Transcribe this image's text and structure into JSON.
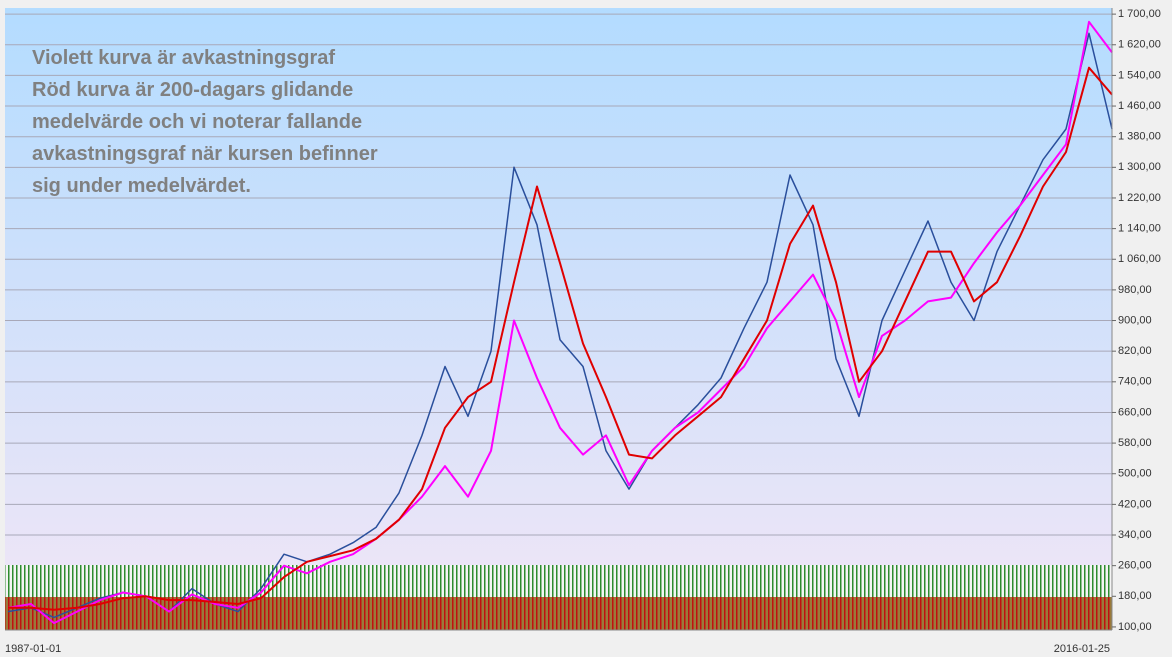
{
  "chart_data": {
    "type": "line",
    "annotations": [
      "Violett kurva är avkastningsgraf",
      "Röd kurva är 200-dagars glidande",
      "medelvärde och vi noterar fallande",
      "avkastningsgraf när kursen befinner",
      "sig under medelvärdet."
    ],
    "categories": [
      "1987-01-01",
      null,
      null,
      null,
      null,
      null,
      null,
      null,
      null,
      null,
      null,
      null,
      null,
      null,
      null,
      null,
      null,
      null,
      null,
      null,
      null,
      null,
      null,
      null,
      null,
      null,
      null,
      null,
      null,
      null,
      null,
      null,
      null,
      null,
      null,
      null,
      null,
      null,
      null,
      null,
      null,
      null,
      null,
      null,
      null,
      null,
      null,
      null,
      "2016-01-25"
    ],
    "series": [
      {
        "color": "#2a4f9c",
        "values": [
          140,
          150,
          125,
          150,
          175,
          190,
          180,
          140,
          200,
          160,
          140,
          200,
          290,
          270,
          290,
          320,
          360,
          450,
          600,
          780,
          650,
          820,
          1300,
          1150,
          850,
          780,
          560,
          460,
          560,
          620,
          680,
          750,
          880,
          1000,
          1280,
          1150,
          800,
          650,
          900,
          1030,
          1160,
          1000,
          900,
          1080,
          1200,
          1320,
          1400,
          1650,
          1400
        ]
      },
      {
        "color": "#ff00ff",
        "values": [
          150,
          160,
          110,
          140,
          170,
          190,
          180,
          140,
          185,
          160,
          150,
          190,
          260,
          240,
          270,
          290,
          330,
          380,
          440,
          520,
          440,
          560,
          900,
          750,
          620,
          550,
          600,
          470,
          560,
          620,
          660,
          720,
          780,
          880,
          950,
          1020,
          900,
          700,
          860,
          900,
          950,
          960,
          1050,
          1130,
          1200,
          1280,
          1360,
          1680,
          1600
        ]
      },
      {
        "color": "#e00000",
        "values": [
          150,
          150,
          145,
          150,
          160,
          175,
          180,
          170,
          170,
          165,
          160,
          175,
          230,
          270,
          285,
          300,
          330,
          380,
          460,
          620,
          700,
          740,
          1000,
          1250,
          1050,
          840,
          700,
          550,
          540,
          600,
          650,
          700,
          800,
          900,
          1100,
          1200,
          1000,
          740,
          820,
          950,
          1080,
          1080,
          950,
          1000,
          1120,
          1250,
          1340,
          1560,
          1490
        ]
      }
    ],
    "ylim": [
      92,
      1716
    ],
    "yticks": [
      {
        "value": 100,
        "label": "100,00"
      },
      {
        "value": 180,
        "label": "180,00"
      },
      {
        "value": 260,
        "label": "260,00"
      },
      {
        "value": 340,
        "label": "340,00"
      },
      {
        "value": 420,
        "label": "420,00"
      },
      {
        "value": 500,
        "label": "500,00"
      },
      {
        "value": 580,
        "label": "580,00"
      },
      {
        "value": 660,
        "label": "660,00"
      },
      {
        "value": 740,
        "label": "740,00"
      },
      {
        "value": 820,
        "label": "820,00"
      },
      {
        "value": 900,
        "label": "900,00"
      },
      {
        "value": 980,
        "label": "980,00"
      },
      {
        "value": 1060,
        "label": "1 060,00"
      },
      {
        "value": 1140,
        "label": "1 140,00"
      },
      {
        "value": 1220,
        "label": "1 220,00"
      },
      {
        "value": 1300,
        "label": "1 300,00"
      },
      {
        "value": 1380,
        "label": "1 380,00"
      },
      {
        "value": 1460,
        "label": "1 460,00"
      },
      {
        "value": 1540,
        "label": "1 540,00"
      },
      {
        "value": 1620,
        "label": "1 620,00"
      },
      {
        "value": 1700,
        "label": "1 700,00"
      }
    ],
    "grid": true
  }
}
